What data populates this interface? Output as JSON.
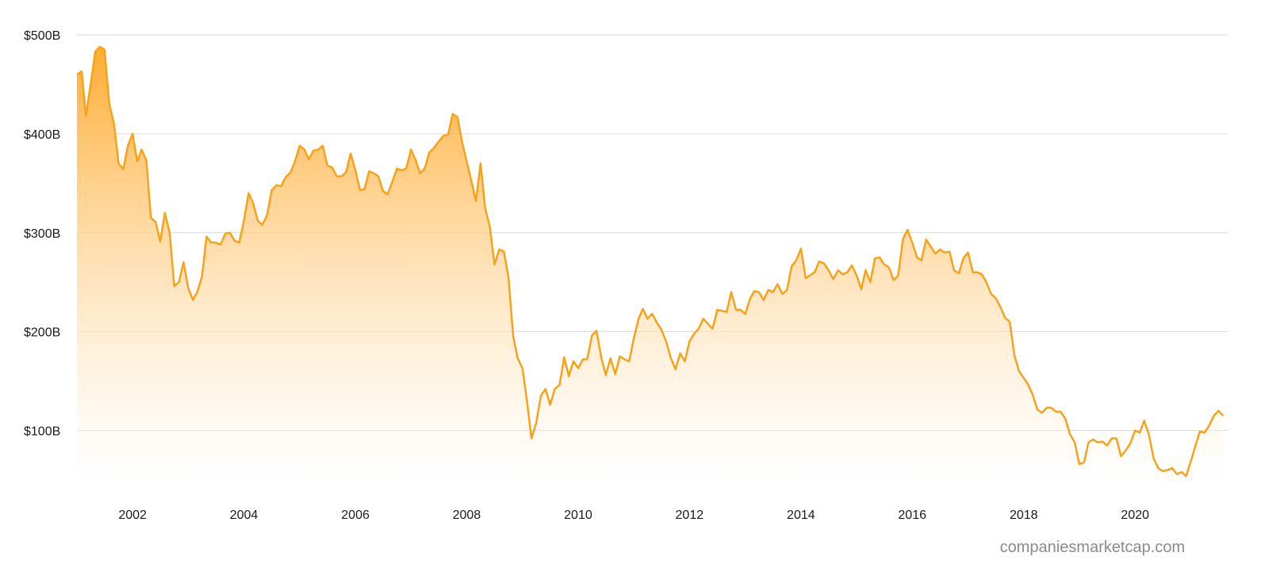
{
  "chart_data": {
    "type": "area",
    "ylim": [
      50,
      500
    ],
    "xlim": [
      "2001-01-01",
      "2021-08-31"
    ],
    "y_ticks": [
      100,
      200,
      300,
      400,
      500
    ],
    "y_tick_labels": [
      "$100B",
      "$200B",
      "$300B",
      "$400B",
      "$500B"
    ],
    "x_ticks": [
      "2002-01-01",
      "2004-01-01",
      "2006-01-01",
      "2008-01-01",
      "2010-01-01",
      "2012-01-01",
      "2014-01-01",
      "2016-01-01",
      "2018-01-01",
      "2020-01-01"
    ],
    "x_tick_labels": [
      "2002",
      "2004",
      "2006",
      "2008",
      "2010",
      "2012",
      "2014",
      "2016",
      "2018",
      "2020"
    ],
    "grid": "horizontal",
    "colors": {
      "line": "#f7a21b",
      "fill_top": "#ffa726",
      "fill_bottom": "#ffffff"
    },
    "series": [
      {
        "x": [
          "2001-01",
          "2001-02",
          "2001-03",
          "2001-04",
          "2001-05",
          "2001-06",
          "2001-07",
          "2001-08",
          "2001-09",
          "2001-10",
          "2001-11",
          "2001-12",
          "2002-01",
          "2002-02",
          "2002-03",
          "2002-04",
          "2002-05",
          "2002-06",
          "2002-07",
          "2002-08",
          "2002-09",
          "2002-10",
          "2002-11",
          "2002-12",
          "2003-01",
          "2003-02",
          "2003-03",
          "2003-04",
          "2003-05",
          "2003-06",
          "2003-07",
          "2003-08",
          "2003-09",
          "2003-10",
          "2003-11",
          "2003-12",
          "2004-01",
          "2004-02",
          "2004-03",
          "2004-04",
          "2004-05",
          "2004-06",
          "2004-07",
          "2004-08",
          "2004-09",
          "2004-10",
          "2004-11",
          "2004-12",
          "2005-01",
          "2005-02",
          "2005-03",
          "2005-04",
          "2005-05",
          "2005-06",
          "2005-07",
          "2005-08",
          "2005-09",
          "2005-10",
          "2005-11",
          "2005-12",
          "2006-01",
          "2006-02",
          "2006-03",
          "2006-04",
          "2006-05",
          "2006-06",
          "2006-07",
          "2006-08",
          "2006-09",
          "2006-10",
          "2006-11",
          "2006-12",
          "2007-01",
          "2007-02",
          "2007-03",
          "2007-04",
          "2007-05",
          "2007-06",
          "2007-07",
          "2007-08",
          "2007-09",
          "2007-10",
          "2007-11",
          "2007-12",
          "2008-01",
          "2008-02",
          "2008-03",
          "2008-04",
          "2008-05",
          "2008-06",
          "2008-07",
          "2008-08",
          "2008-09",
          "2008-10",
          "2008-11",
          "2008-12",
          "2009-01",
          "2009-02",
          "2009-03",
          "2009-04",
          "2009-05",
          "2009-06",
          "2009-07",
          "2009-08",
          "2009-09",
          "2009-10",
          "2009-11",
          "2009-12",
          "2010-01",
          "2010-02",
          "2010-03",
          "2010-04",
          "2010-05",
          "2010-06",
          "2010-07",
          "2010-08",
          "2010-09",
          "2010-10",
          "2010-11",
          "2010-12",
          "2011-01",
          "2011-02",
          "2011-03",
          "2011-04",
          "2011-05",
          "2011-06",
          "2011-07",
          "2011-08",
          "2011-09",
          "2011-10",
          "2011-11",
          "2011-12",
          "2012-01",
          "2012-02",
          "2012-03",
          "2012-04",
          "2012-05",
          "2012-06",
          "2012-07",
          "2012-08",
          "2012-09",
          "2012-10",
          "2012-11",
          "2012-12",
          "2013-01",
          "2013-02",
          "2013-03",
          "2013-04",
          "2013-05",
          "2013-06",
          "2013-07",
          "2013-08",
          "2013-09",
          "2013-10",
          "2013-11",
          "2013-12",
          "2014-01",
          "2014-02",
          "2014-03",
          "2014-04",
          "2014-05",
          "2014-06",
          "2014-07",
          "2014-08",
          "2014-09",
          "2014-10",
          "2014-11",
          "2014-12",
          "2015-01",
          "2015-02",
          "2015-03",
          "2015-04",
          "2015-05",
          "2015-06",
          "2015-07",
          "2015-08",
          "2015-09",
          "2015-10",
          "2015-11",
          "2015-12",
          "2016-01",
          "2016-02",
          "2016-03",
          "2016-04",
          "2016-05",
          "2016-06",
          "2016-07",
          "2016-08",
          "2016-09",
          "2016-10",
          "2016-11",
          "2016-12",
          "2017-01",
          "2017-02",
          "2017-03",
          "2017-04",
          "2017-05",
          "2017-06",
          "2017-07",
          "2017-08",
          "2017-09",
          "2017-10",
          "2017-11",
          "2017-12",
          "2018-01",
          "2018-02",
          "2018-03",
          "2018-04",
          "2018-05",
          "2018-06",
          "2018-07",
          "2018-08",
          "2018-09",
          "2018-10",
          "2018-11",
          "2018-12",
          "2019-01",
          "2019-02",
          "2019-03",
          "2019-04",
          "2019-05",
          "2019-06",
          "2019-07",
          "2019-08",
          "2019-09",
          "2019-10",
          "2019-11",
          "2019-12",
          "2020-01",
          "2020-02",
          "2020-03",
          "2020-04",
          "2020-05",
          "2020-06",
          "2020-07",
          "2020-08",
          "2020-09",
          "2020-10",
          "2020-11",
          "2020-12",
          "2021-01",
          "2021-02",
          "2021-03",
          "2021-04",
          "2021-05",
          "2021-06",
          "2021-07",
          "2021-08"
        ],
        "values": [
          460,
          463,
          418,
          450,
          483,
          488,
          485,
          430,
          410,
          370,
          364,
          388,
          400,
          372,
          384,
          373,
          315,
          311,
          291,
          320,
          300,
          246,
          250,
          270,
          244,
          232,
          240,
          256,
          296,
          290,
          290,
          288,
          299,
          300,
          292,
          290,
          312,
          340,
          330,
          312,
          308,
          318,
          343,
          348,
          347,
          356,
          361,
          372,
          388,
          384,
          374,
          383,
          384,
          388,
          368,
          366,
          357,
          357,
          361,
          380,
          363,
          343,
          344,
          362,
          360,
          357,
          342,
          339,
          352,
          365,
          363,
          365,
          384,
          373,
          360,
          365,
          381,
          386,
          392,
          398,
          399,
          420,
          417,
          392,
          372,
          352,
          332,
          370,
          325,
          306,
          268,
          283,
          281,
          255,
          195,
          173,
          163,
          128,
          92,
          108,
          135,
          142,
          126,
          142,
          146,
          174,
          155,
          170,
          163,
          172,
          172,
          196,
          201,
          174,
          156,
          173,
          157,
          175,
          172,
          170,
          193,
          213,
          223,
          213,
          218,
          209,
          202,
          190,
          173,
          162,
          178,
          170,
          190,
          198,
          203,
          213,
          208,
          203,
          222,
          221,
          220,
          240,
          222,
          222,
          218,
          233,
          241,
          240,
          232,
          242,
          240,
          248,
          238,
          242,
          266,
          272,
          284,
          254,
          257,
          260,
          271,
          269,
          262,
          253,
          262,
          258,
          260,
          267,
          257,
          243,
          262,
          250,
          274,
          275,
          268,
          265,
          252,
          257,
          294,
          303,
          290,
          275,
          272,
          293,
          286,
          279,
          283,
          280,
          281,
          262,
          259,
          274,
          280,
          260,
          260,
          258,
          250,
          238,
          234,
          225,
          214,
          210,
          176,
          160,
          153,
          146,
          136,
          121,
          118,
          123,
          123,
          119,
          119,
          112,
          96,
          88,
          66,
          68,
          88,
          91,
          88,
          89,
          85,
          92,
          92,
          74,
          80,
          87,
          100,
          98,
          110,
          96,
          72,
          62,
          59,
          60,
          62,
          56,
          58,
          54,
          69,
          85,
          99,
          98,
          105,
          115,
          120,
          115
        ]
      }
    ],
    "watermark": "companiesmarketcap.com"
  }
}
